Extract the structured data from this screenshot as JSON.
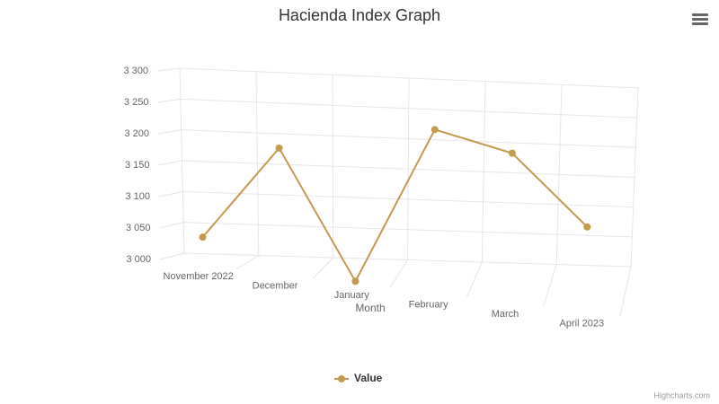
{
  "chart_data": {
    "type": "line",
    "title": "Hacienda Index Graph",
    "x_label": "Month",
    "categories": [
      "November 2022",
      "December",
      "January",
      "February",
      "March",
      "April 2023"
    ],
    "series": [
      {
        "name": "Value",
        "color": "#c49a4e",
        "values": [
          3040,
          3195,
          2995,
          3250,
          3225,
          3120
        ]
      }
    ],
    "ylim": [
      3000,
      3300
    ],
    "yticks": [
      {
        "value": 3000,
        "label": "3 000"
      },
      {
        "value": 3050,
        "label": "3 050"
      },
      {
        "value": 3100,
        "label": "3 100"
      },
      {
        "value": 3150,
        "label": "3 150"
      },
      {
        "value": 3200,
        "label": "3 200"
      },
      {
        "value": 3250,
        "label": "3 250"
      },
      {
        "value": 3300,
        "label": "3 300"
      }
    ],
    "grid": true,
    "legend": "bottom",
    "credits": "Highcharts.com"
  }
}
